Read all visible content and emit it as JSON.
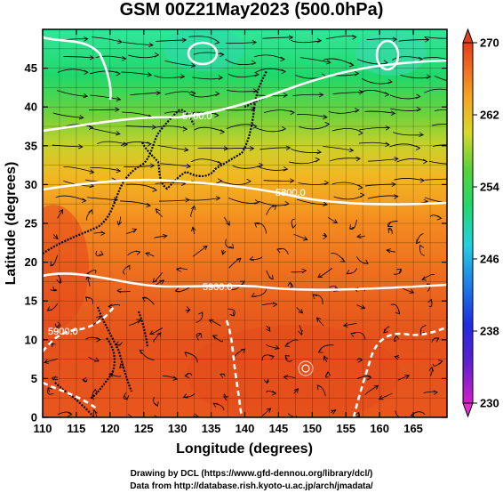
{
  "title": "GSM 00Z21May2023 (500.0hPa)",
  "x_axis": {
    "label": "Longitude (degrees)",
    "range": [
      110,
      170
    ],
    "ticks": [
      "110",
      "115",
      "120",
      "125",
      "130",
      "135",
      "140",
      "145",
      "150",
      "155",
      "160",
      "165"
    ],
    "tick_values": [
      110,
      115,
      120,
      125,
      130,
      135,
      140,
      145,
      150,
      155,
      160,
      165
    ]
  },
  "y_axis": {
    "label": "Latitude  (degrees)",
    "range": [
      0,
      50
    ],
    "ticks": [
      "0",
      "5",
      "10",
      "15",
      "20",
      "25",
      "30",
      "35",
      "40",
      "45"
    ],
    "tick_values": [
      0,
      5,
      10,
      15,
      20,
      25,
      30,
      35,
      40,
      45
    ]
  },
  "colorbar": {
    "range": [
      230,
      270
    ],
    "ticks": [
      "230",
      "238",
      "246",
      "254",
      "262",
      "270"
    ],
    "tick_values": [
      230,
      238,
      246,
      254,
      262,
      270
    ]
  },
  "contour_labels": [
    "5700.0",
    "5800.0",
    "5900.0",
    "5900.0"
  ],
  "credits": {
    "line1": "Drawing by DCL (https://www.gfd-dennou.org/library/dcl/)",
    "line2": "Data from http://database.rish.kyoto-u.ac.jp/arch/jmadata/"
  },
  "colors": {
    "field_north": "#28d65a",
    "field_mid": "#f0a81e",
    "field_south": "#e85420",
    "contour": "#ffffff",
    "coast": "#000000"
  }
}
